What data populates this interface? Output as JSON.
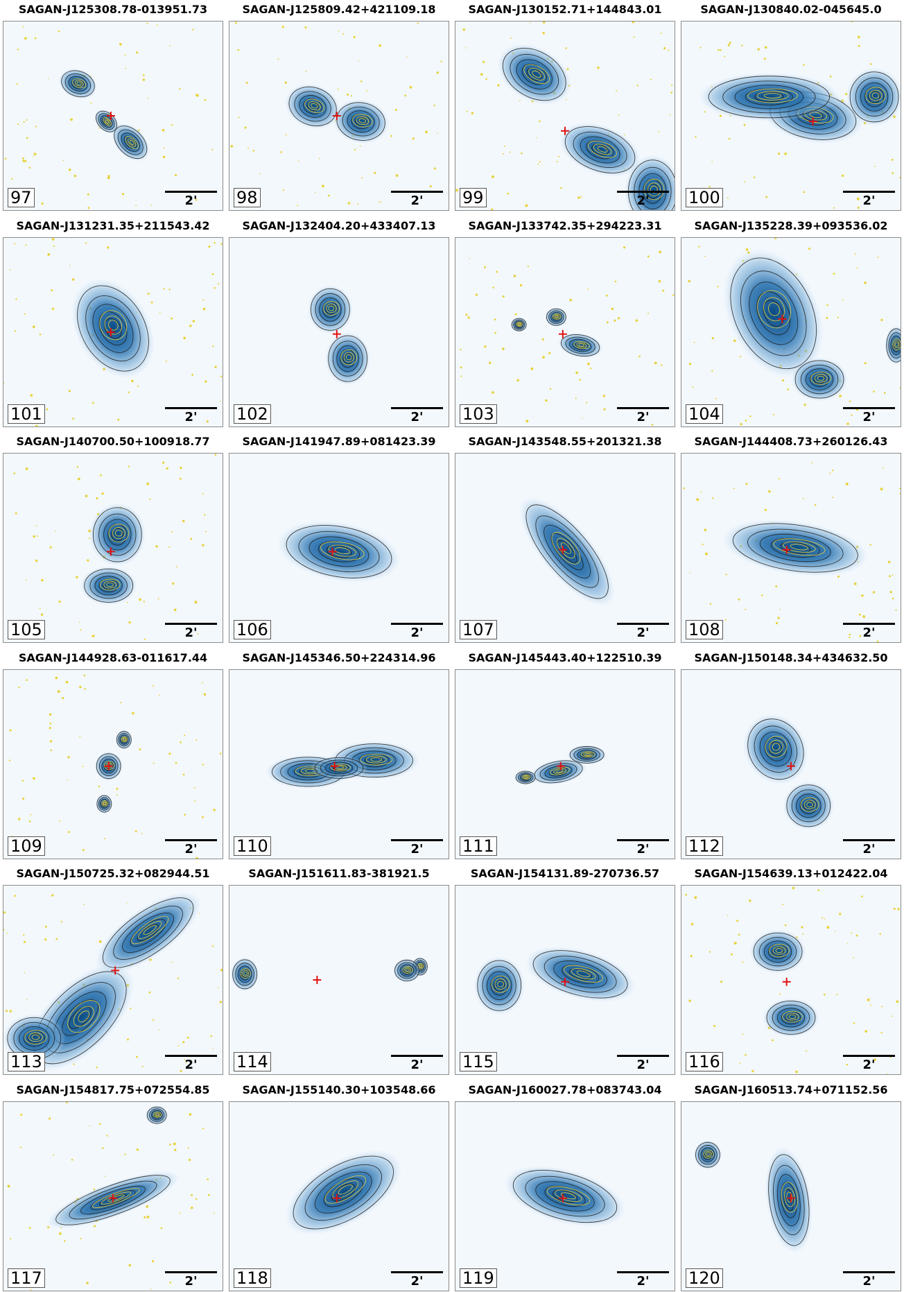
{
  "colors": {
    "blob": "#0a4a82",
    "contour": "#1a1a1a",
    "optical": "#e8d340",
    "marker": "#e01010",
    "background": "#f3f8fd"
  },
  "panels": [
    {
      "title": "SAGAN-J125308.78-013951.73",
      "number": "97",
      "scale_label": "2'",
      "marker": [
        0.49,
        0.5
      ],
      "blobs": [
        [
          0.34,
          0.33,
          0.07,
          0.06,
          20
        ],
        [
          0.58,
          0.64,
          0.08,
          0.06,
          45
        ],
        [
          0.47,
          0.53,
          0.05,
          0.04,
          45
        ]
      ],
      "dots": true
    },
    {
      "title": "SAGAN-J125809.42+421109.18",
      "number": "98",
      "scale_label": "2'",
      "marker": [
        0.49,
        0.5
      ],
      "blobs": [
        [
          0.38,
          0.45,
          0.1,
          0.09,
          20
        ],
        [
          0.6,
          0.53,
          0.1,
          0.09,
          10
        ]
      ],
      "dots": true
    },
    {
      "title": "SAGAN-J130152.71+144843.01",
      "number": "99",
      "scale_label": "2'",
      "marker": [
        0.5,
        0.58
      ],
      "blobs": [
        [
          0.36,
          0.28,
          0.14,
          0.11,
          30
        ],
        [
          0.66,
          0.68,
          0.15,
          0.1,
          20
        ],
        [
          0.9,
          0.9,
          0.1,
          0.15,
          0
        ]
      ],
      "dots": true
    },
    {
      "title": "SAGAN-J130840.02-045645.0",
      "number": "100",
      "scale_label": "2'",
      "marker": [
        0.6,
        0.53
      ],
      "blobs": [
        [
          0.6,
          0.5,
          0.18,
          0.11,
          10
        ],
        [
          0.4,
          0.4,
          0.25,
          0.1,
          0
        ],
        [
          0.88,
          0.4,
          0.1,
          0.12,
          0
        ]
      ],
      "dots": true
    },
    {
      "title": "SAGAN-J131231.35+211543.42",
      "number": "101",
      "scale_label": "2'",
      "marker": [
        0.49,
        0.5
      ],
      "blobs": [
        [
          0.5,
          0.48,
          0.13,
          0.22,
          -30
        ]
      ],
      "dots": true
    },
    {
      "title": "SAGAN-J132404.20+433407.13",
      "number": "102",
      "scale_label": "2'",
      "marker": [
        0.49,
        0.51
      ],
      "blobs": [
        [
          0.46,
          0.38,
          0.08,
          0.1,
          0
        ],
        [
          0.54,
          0.64,
          0.08,
          0.11,
          0
        ]
      ],
      "dots": false
    },
    {
      "title": "SAGAN-J133742.35+294223.31",
      "number": "103",
      "scale_label": "2'",
      "marker": [
        0.49,
        0.51
      ],
      "blobs": [
        [
          0.46,
          0.42,
          0.04,
          0.04,
          0
        ],
        [
          0.57,
          0.57,
          0.08,
          0.05,
          10
        ],
        [
          0.29,
          0.46,
          0.03,
          0.03,
          0
        ]
      ],
      "dots": true
    },
    {
      "title": "SAGAN-J135228.39+093536.02",
      "number": "104",
      "scale_label": "2'",
      "marker": [
        0.46,
        0.43
      ],
      "blobs": [
        [
          0.42,
          0.4,
          0.16,
          0.28,
          -25
        ],
        [
          0.63,
          0.75,
          0.1,
          0.09,
          0
        ],
        [
          0.98,
          0.57,
          0.04,
          0.08,
          0
        ]
      ],
      "dots": true
    },
    {
      "title": "SAGAN-J140700.50+100918.77",
      "number": "105",
      "scale_label": "2'",
      "marker": [
        0.49,
        0.52
      ],
      "blobs": [
        [
          0.52,
          0.43,
          0.1,
          0.13,
          0
        ],
        [
          0.48,
          0.7,
          0.1,
          0.08,
          0
        ]
      ],
      "dots": true
    },
    {
      "title": "SAGAN-J141947.89+081423.39",
      "number": "106",
      "scale_label": "2'",
      "marker": [
        0.47,
        0.52
      ],
      "blobs": [
        [
          0.5,
          0.52,
          0.22,
          0.12,
          10
        ]
      ],
      "dots": false
    },
    {
      "title": "SAGAN-J143548.55+201321.38",
      "number": "107",
      "scale_label": "2'",
      "marker": [
        0.49,
        0.51
      ],
      "blobs": [
        [
          0.51,
          0.52,
          0.09,
          0.28,
          -40
        ]
      ],
      "dots": false
    },
    {
      "title": "SAGAN-J144408.73+260126.43",
      "number": "108",
      "scale_label": "2'",
      "marker": [
        0.48,
        0.51
      ],
      "blobs": [
        [
          0.52,
          0.5,
          0.26,
          0.11,
          8
        ]
      ],
      "dots": true
    },
    {
      "title": "SAGAN-J144928.63-011617.44",
      "number": "109",
      "scale_label": "2'",
      "marker": [
        0.48,
        0.51
      ],
      "blobs": [
        [
          0.48,
          0.51,
          0.05,
          0.06,
          0
        ],
        [
          0.55,
          0.37,
          0.03,
          0.04,
          0
        ],
        [
          0.46,
          0.71,
          0.03,
          0.04,
          0
        ]
      ],
      "dots": true
    },
    {
      "title": "SAGAN-J145346.50+224314.96",
      "number": "110",
      "scale_label": "2'",
      "marker": [
        0.48,
        0.51
      ],
      "blobs": [
        [
          0.36,
          0.54,
          0.15,
          0.07,
          0
        ],
        [
          0.66,
          0.48,
          0.16,
          0.08,
          0
        ],
        [
          0.5,
          0.52,
          0.1,
          0.05,
          0
        ]
      ],
      "dots": false
    },
    {
      "title": "SAGAN-J145443.40+122510.39",
      "number": "111",
      "scale_label": "2'",
      "marker": [
        0.48,
        0.51
      ],
      "blobs": [
        [
          0.47,
          0.54,
          0.1,
          0.05,
          -10
        ],
        [
          0.6,
          0.45,
          0.07,
          0.04,
          0
        ],
        [
          0.32,
          0.57,
          0.04,
          0.03,
          0
        ]
      ],
      "dots": false
    },
    {
      "title": "SAGAN-J150148.34+434632.50",
      "number": "112",
      "scale_label": "2'",
      "marker": [
        0.5,
        0.51
      ],
      "blobs": [
        [
          0.43,
          0.42,
          0.11,
          0.15,
          -30
        ],
        [
          0.58,
          0.72,
          0.09,
          0.1,
          0
        ]
      ],
      "dots": false
    },
    {
      "title": "SAGAN-J150725.32+082944.51",
      "number": "113",
      "scale_label": "2'",
      "marker": [
        0.51,
        0.45
      ],
      "blobs": [
        [
          0.66,
          0.25,
          0.22,
          0.1,
          -35
        ],
        [
          0.35,
          0.7,
          0.12,
          0.28,
          45
        ],
        [
          0.14,
          0.81,
          0.11,
          0.1,
          0
        ]
      ],
      "dots": true
    },
    {
      "title": "SAGAN-J151611.83-381921.5",
      "number": "114",
      "scale_label": "2'",
      "marker": [
        0.4,
        0.5
      ],
      "blobs": [
        [
          0.07,
          0.47,
          0.05,
          0.07,
          0
        ],
        [
          0.87,
          0.43,
          0.03,
          0.04,
          0
        ],
        [
          0.81,
          0.45,
          0.05,
          0.05,
          0
        ]
      ],
      "dots": false
    },
    {
      "title": "SAGAN-J154131.89-270736.57",
      "number": "115",
      "scale_label": "2'",
      "marker": [
        0.5,
        0.51
      ],
      "blobs": [
        [
          0.2,
          0.53,
          0.09,
          0.12,
          0
        ],
        [
          0.57,
          0.47,
          0.2,
          0.1,
          15
        ]
      ],
      "dots": false
    },
    {
      "title": "SAGAN-J154639.13+012422.04",
      "number": "116",
      "scale_label": "2'",
      "marker": [
        0.48,
        0.51
      ],
      "blobs": [
        [
          0.44,
          0.35,
          0.1,
          0.09,
          0
        ],
        [
          0.5,
          0.7,
          0.1,
          0.08,
          0
        ]
      ],
      "dots": true
    },
    {
      "title": "SAGAN-J154817.75+072554.85",
      "number": "117",
      "scale_label": "2'",
      "marker": [
        0.5,
        0.51
      ],
      "blobs": [
        [
          0.5,
          0.52,
          0.25,
          0.07,
          -20
        ],
        [
          0.7,
          0.07,
          0.04,
          0.04,
          0
        ]
      ],
      "dots": true
    },
    {
      "title": "SAGAN-J155140.30+103548.66",
      "number": "118",
      "scale_label": "2'",
      "marker": [
        0.49,
        0.51
      ],
      "blobs": [
        [
          0.52,
          0.48,
          0.23,
          0.13,
          -30
        ]
      ],
      "dots": false
    },
    {
      "title": "SAGAN-J160027.78+083743.04",
      "number": "119",
      "scale_label": "2'",
      "marker": [
        0.49,
        0.51
      ],
      "blobs": [
        [
          0.5,
          0.5,
          0.22,
          0.11,
          15
        ]
      ],
      "dots": false
    },
    {
      "title": "SAGAN-J160513.74+071152.56",
      "number": "120",
      "scale_label": "2'",
      "marker": [
        0.5,
        0.51
      ],
      "blobs": [
        [
          0.12,
          0.28,
          0.05,
          0.06,
          0
        ],
        [
          0.49,
          0.52,
          0.08,
          0.22,
          -8
        ]
      ],
      "dots": false
    }
  ]
}
